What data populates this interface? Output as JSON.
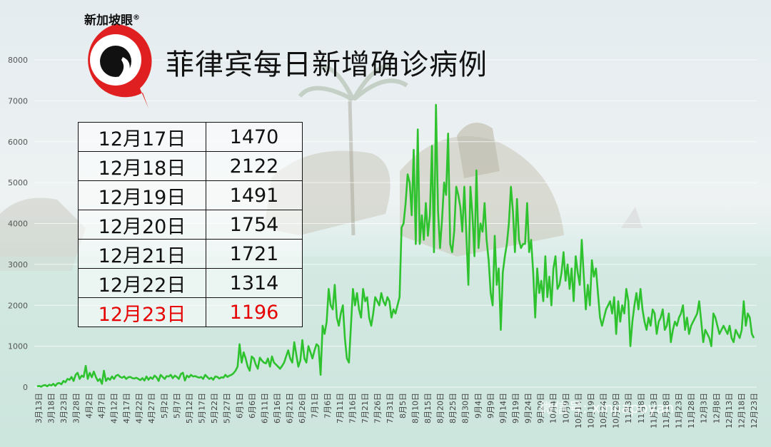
{
  "brand": {
    "name": "新加坡眼",
    "mark": "®"
  },
  "title": "菲律宾每日新增确诊病例",
  "table": [
    {
      "date": "12月17日",
      "value": "1470"
    },
    {
      "date": "12月18日",
      "value": "2122"
    },
    {
      "date": "12月19日",
      "value": "1491"
    },
    {
      "date": "12月20日",
      "value": "1754"
    },
    {
      "date": "12月21日",
      "value": "1721"
    },
    {
      "date": "12月22日",
      "value": "1314"
    },
    {
      "date": "12月23日",
      "value": "1196",
      "highlight": true
    }
  ],
  "watermark": "微信号: xinjiapoyan",
  "colors": {
    "line": "#2ec22e",
    "highlight": "#e60000",
    "logo_red": "#e02020"
  },
  "chart_data": {
    "type": "line",
    "title": "菲律宾每日新增确诊病例",
    "xlabel": "",
    "ylabel": "",
    "ylim": [
      0,
      8000
    ],
    "yticks": [
      0,
      1000,
      2000,
      3000,
      4000,
      5000,
      6000,
      7000,
      8000
    ],
    "xticks": [
      "3月13日",
      "3月18日",
      "3月23日",
      "3月28日",
      "4月2日",
      "4月7日",
      "4月12日",
      "4月17日",
      "4月22日",
      "4月27日",
      "5月2日",
      "5月7日",
      "5月12日",
      "5月17日",
      "5月22日",
      "5月27日",
      "6月1日",
      "6月6日",
      "6月11日",
      "6月16日",
      "6月21日",
      "6月26日",
      "7月1日",
      "7月6日",
      "7月11日",
      "7月16日",
      "7月21日",
      "7月26日",
      "7月31日",
      "8月5日",
      "8月10日",
      "8月15日",
      "8月20日",
      "8月25日",
      "8月30日",
      "9月4日",
      "9月9日",
      "9月14日",
      "9月19日",
      "9月24日",
      "9月29日",
      "10月4日",
      "10月9日",
      "10月14日",
      "10月19日",
      "10月24日",
      "10月29日",
      "11月3日",
      "11月8日",
      "11月13日",
      "11月18日",
      "11月23日",
      "11月28日",
      "12月3日",
      "12月8日",
      "12月13日",
      "12月18日",
      "12月23日"
    ],
    "grid": true,
    "legend": "none",
    "series": [
      {
        "values": [
          20,
          30,
          10,
          40,
          50,
          20,
          60,
          40,
          80,
          30,
          90,
          100,
          70,
          150,
          120,
          200,
          180,
          250,
          150,
          300,
          350,
          200,
          280,
          250,
          520,
          200,
          350,
          240,
          380,
          250,
          150,
          200,
          80,
          400,
          150,
          220,
          180,
          260,
          200,
          280,
          300,
          250,
          230,
          260,
          200,
          240,
          250,
          220,
          210,
          230,
          200,
          170,
          220,
          160,
          260,
          180,
          240,
          200,
          280,
          240,
          150,
          300,
          250,
          200,
          270,
          260,
          300,
          220,
          280,
          250,
          200,
          320,
          350,
          160,
          280,
          240,
          300,
          260,
          270,
          250,
          230,
          250,
          200,
          300,
          250,
          200,
          230,
          180,
          260,
          250,
          210,
          240,
          230,
          300,
          250,
          280,
          300,
          340,
          400,
          500,
          1050,
          600,
          850,
          700,
          500,
          400,
          750,
          700,
          550,
          450,
          720,
          650,
          600,
          580,
          700,
          500,
          750,
          600,
          550,
          500,
          450,
          520,
          600,
          750,
          900,
          700,
          600,
          1100,
          800,
          500,
          650,
          1150,
          700,
          600,
          1000,
          850,
          700,
          900,
          1050,
          1000,
          300,
          1500,
          1300,
          1600,
          2400,
          2000,
          1900,
          2500,
          1700,
          1500,
          1800,
          2000,
          1200,
          700,
          600,
          1500,
          2400,
          2000,
          2300,
          1900,
          1700,
          2400,
          2100,
          2200,
          1700,
          1500,
          1800,
          2200,
          2100,
          2000,
          2300,
          2100,
          2000,
          2200,
          2100,
          1700,
          1900,
          1800,
          2000,
          2200,
          3900,
          4000,
          4500,
          5200,
          5000,
          4200,
          5800,
          3500,
          6300,
          3500,
          4200,
          3600,
          4500,
          3700,
          4200,
          5900,
          3300,
          6900,
          4300,
          3400,
          4100,
          5000,
          4700,
          6200,
          3500,
          3300,
          3800,
          4900,
          4700,
          4400,
          3800,
          4900,
          3700,
          2500,
          4900,
          4200,
          3200,
          5300,
          3400,
          4000,
          3800,
          4500,
          3600,
          3100,
          2300,
          2000,
          3700,
          2500,
          2900,
          1400,
          2800,
          3200,
          3500,
          4000,
          4900,
          4300,
          3300,
          4600,
          3600,
          3400,
          3500,
          3500,
          4500,
          3300,
          3600,
          2800,
          1700,
          2900,
          2300,
          2600,
          2100,
          3200,
          2200,
          2700,
          2000,
          2900,
          3200,
          2400,
          2500,
          2800,
          3300,
          2600,
          3000,
          2400,
          2900,
          2100,
          3200,
          2800,
          2500,
          3600,
          2700,
          1900,
          2500,
          2000,
          3100,
          2700,
          2900,
          2300,
          1700,
          1500,
          1700,
          1900,
          2000,
          2100,
          1800,
          2200,
          1300,
          2100,
          1600,
          2000,
          1800,
          2400,
          2100,
          1000,
          1600,
          2000,
          2300,
          1900,
          2400,
          1900,
          1600,
          1400,
          1700,
          1500,
          1900,
          1800,
          1300,
          1600,
          1700,
          1900,
          1400,
          1500,
          1800,
          1100,
          1400,
          1600,
          1500,
          1700,
          1800,
          2000,
          1400,
          1700,
          1300,
          1500,
          1600,
          1700,
          1800,
          2100,
          1600,
          1100,
          1400,
          1300,
          1200,
          1000,
          1800,
          1700,
          1500,
          1300,
          1400,
          1500,
          1400,
          1300,
          1500,
          1200,
          1100,
          1400,
          1300,
          1200,
          1400,
          2100,
          1500,
          1800,
          1700,
          1300,
          1200
        ]
      }
    ]
  }
}
